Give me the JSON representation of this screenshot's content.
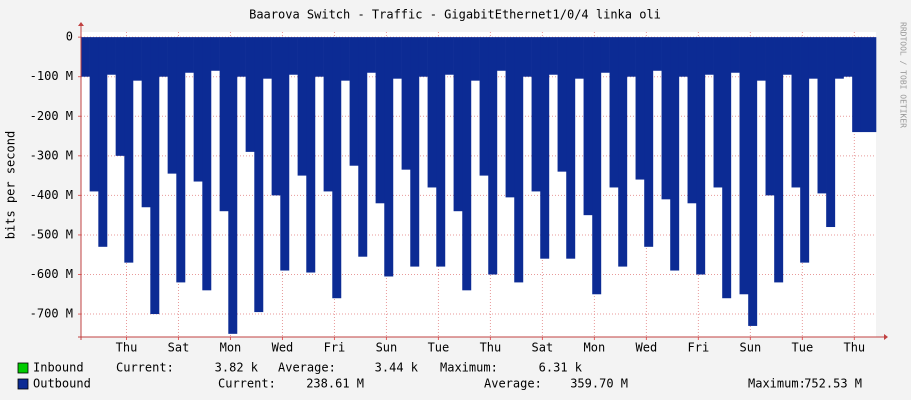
{
  "chart_data": {
    "type": "area",
    "title": "Baarova Switch - Traffic - GigabitEthernet1/0/4 linka oli",
    "y_label": "bits per second",
    "watermark": "RRDTOOL / TOBI OETIKER",
    "x": [
      0,
      8,
      16,
      24,
      32,
      40,
      48,
      56,
      64,
      72,
      80,
      88,
      96,
      104,
      112,
      120,
      128,
      136,
      144,
      152,
      160,
      168,
      176,
      184,
      192,
      200,
      208,
      216,
      224,
      232,
      240,
      248,
      256,
      264,
      272,
      280,
      288,
      296,
      304,
      312,
      320,
      328,
      336,
      344,
      352,
      360,
      368,
      376,
      384,
      392,
      400,
      408,
      416,
      424,
      432,
      440,
      448,
      456,
      464,
      472,
      480,
      488,
      496,
      504,
      512,
      520,
      528,
      536,
      544,
      552,
      560,
      568,
      576,
      584,
      592,
      600,
      608,
      616,
      624,
      632,
      640,
      648,
      656,
      664,
      672,
      680,
      688,
      696,
      704,
      712,
      720
    ],
    "series": [
      {
        "name": "Outbound",
        "color": "#0c2b94",
        "values": [
          -100000000,
          -390000000,
          -530000000,
          -95000000,
          -300000000,
          -570000000,
          -110000000,
          -430000000,
          -700000000,
          -100000000,
          -345000000,
          -620000000,
          -90000000,
          -365000000,
          -640000000,
          -85000000,
          -440000000,
          -750000000,
          -100000000,
          -290000000,
          -695000000,
          -105000000,
          -400000000,
          -590000000,
          -95000000,
          -350000000,
          -595000000,
          -100000000,
          -390000000,
          -660000000,
          -110000000,
          -325000000,
          -555000000,
          -90000000,
          -420000000,
          -605000000,
          -105000000,
          -335000000,
          -580000000,
          -100000000,
          -380000000,
          -580000000,
          -95000000,
          -440000000,
          -640000000,
          -110000000,
          -350000000,
          -600000000,
          -85000000,
          -405000000,
          -620000000,
          -100000000,
          -390000000,
          -560000000,
          -95000000,
          -340000000,
          -560000000,
          -105000000,
          -450000000,
          -650000000,
          -90000000,
          -380000000,
          -580000000,
          -100000000,
          -360000000,
          -530000000,
          -85000000,
          -410000000,
          -590000000,
          -100000000,
          -420000000,
          -600000000,
          -95000000,
          -380000000,
          -660000000,
          -90000000,
          -650000000,
          -730000000,
          -110000000,
          -400000000,
          -620000000,
          -95000000,
          -380000000,
          -570000000,
          -105000000,
          -395000000,
          -480000000,
          -105000000,
          -100000000,
          -240000000,
          -240000000
        ]
      }
    ],
    "xlim": [
      0,
      734
    ],
    "xticks": [
      {
        "value": 42,
        "label": "Thu"
      },
      {
        "value": 90,
        "label": "Sat"
      },
      {
        "value": 138,
        "label": "Mon"
      },
      {
        "value": 186,
        "label": "Wed"
      },
      {
        "value": 234,
        "label": "Fri"
      },
      {
        "value": 282,
        "label": "Sun"
      },
      {
        "value": 330,
        "label": "Tue"
      },
      {
        "value": 378,
        "label": "Thu"
      },
      {
        "value": 426,
        "label": "Sat"
      },
      {
        "value": 474,
        "label": "Mon"
      },
      {
        "value": 522,
        "label": "Wed"
      },
      {
        "value": 570,
        "label": "Fri"
      },
      {
        "value": 618,
        "label": "Sun"
      },
      {
        "value": 666,
        "label": "Tue"
      },
      {
        "value": 714,
        "label": "Thu"
      }
    ],
    "ylim": [
      -758000000,
      13000000
    ],
    "yticks": [
      0,
      {
        "value": -100000000,
        "label": "-100 M"
      },
      {
        "value": -200000000,
        "label": "-200 M"
      },
      {
        "value": -300000000,
        "label": "-300 M"
      },
      {
        "value": -400000000,
        "label": "-400 M"
      },
      {
        "value": -500000000,
        "label": "-500 M"
      },
      {
        "value": -600000000,
        "label": "-600 M"
      },
      {
        "value": -700000000,
        "label": "-700 M"
      }
    ],
    "grid": true,
    "legend": [
      {
        "name": "Inbound",
        "color": "#00cc00",
        "stats": [
          {
            "label": "Current:",
            "value": "3.82 k"
          },
          {
            "label": "Average:",
            "value": "3.44 k"
          },
          {
            "label": "Maximum:",
            "value": "6.31 k"
          }
        ]
      },
      {
        "name": "Outbound",
        "color": "#0c2b94",
        "stats": [
          {
            "label": "Current:",
            "value": "238.61 M"
          },
          {
            "label": "Average:",
            "value": "359.70 M"
          },
          {
            "label": "Maximum:",
            "value": "752.53 M"
          }
        ]
      }
    ]
  }
}
